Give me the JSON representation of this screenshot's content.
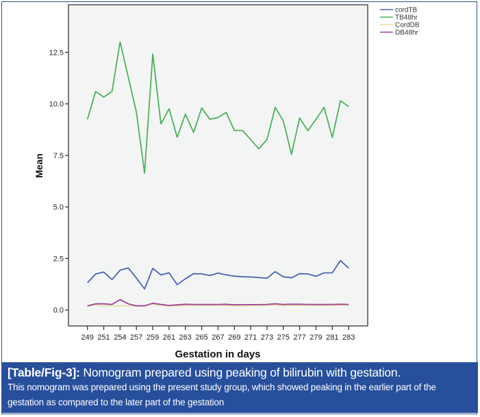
{
  "chart_data": {
    "type": "line",
    "title": "",
    "xlabel": "Gestation in days",
    "ylabel": "Mean",
    "ylim": [
      -0.8,
      14.9
    ],
    "yticks": [
      "0.0",
      "2.5",
      "5.0",
      "7.5",
      "10.0",
      "12.5"
    ],
    "x": [
      249,
      250,
      251,
      253,
      254,
      256,
      257,
      258,
      259,
      260,
      261,
      262,
      263,
      264,
      265,
      266,
      267,
      268,
      269,
      270,
      271,
      272,
      273,
      274,
      275,
      276,
      277,
      278,
      279,
      280,
      281,
      282,
      283
    ],
    "xtick_labels": [
      "249",
      "251",
      "254",
      "257",
      "259",
      "261",
      "263",
      "265",
      "267",
      "269",
      "271",
      "273",
      "275",
      "277",
      "279",
      "281",
      "283"
    ],
    "legend_position": "top-right",
    "series": [
      {
        "name": "cordTB",
        "color": "#4a62b0",
        "values": [
          1.32,
          1.74,
          1.84,
          1.48,
          1.93,
          2.04,
          1.55,
          1.02,
          2.02,
          1.7,
          1.8,
          1.23,
          1.51,
          1.76,
          1.75,
          1.67,
          1.79,
          1.7,
          1.64,
          1.61,
          1.6,
          1.57,
          1.54,
          1.86,
          1.61,
          1.56,
          1.76,
          1.75,
          1.63,
          1.8,
          1.8,
          2.4,
          2.03
        ]
      },
      {
        "name": "TB48hr",
        "color": "#4caf5a",
        "values": [
          9.25,
          10.6,
          10.33,
          10.6,
          13.0,
          11.3,
          9.6,
          6.64,
          12.42,
          9.03,
          9.76,
          8.38,
          9.5,
          8.62,
          9.8,
          9.25,
          9.34,
          9.58,
          8.71,
          8.71,
          8.27,
          7.82,
          8.27,
          9.83,
          9.17,
          7.55,
          9.32,
          8.7,
          9.25,
          9.83,
          8.37,
          10.15,
          9.87
        ]
      },
      {
        "name": "CordDB",
        "color": "#e6e0a0",
        "values": [
          0.2,
          0.25,
          0.2,
          0.2,
          0.2,
          0.2,
          0.2,
          0.2,
          0.28,
          0.22,
          0.2,
          0.2,
          0.22,
          0.22,
          0.22,
          0.22,
          0.22,
          0.22,
          0.2,
          0.2,
          0.22,
          0.22,
          0.22,
          0.24,
          0.22,
          0.22,
          0.22,
          0.22,
          0.22,
          0.22,
          0.22,
          0.24,
          0.22
        ]
      },
      {
        "name": "DB48hr",
        "color": "#a0409a",
        "values": [
          0.2,
          0.3,
          0.3,
          0.27,
          0.5,
          0.3,
          0.2,
          0.2,
          0.33,
          0.27,
          0.22,
          0.25,
          0.28,
          0.27,
          0.27,
          0.27,
          0.27,
          0.28,
          0.25,
          0.26,
          0.26,
          0.26,
          0.27,
          0.3,
          0.27,
          0.28,
          0.28,
          0.27,
          0.27,
          0.27,
          0.27,
          0.28,
          0.27
        ]
      }
    ]
  },
  "caption": {
    "label": "[Table/Fig-3]:",
    "title": " Nomogram prepared using peaking of bilirubin with gestation.",
    "body": "This nomogram was prepared using the present study group, which showed peaking in the earlier part of the gestation as compared to the later part of the gestation"
  }
}
